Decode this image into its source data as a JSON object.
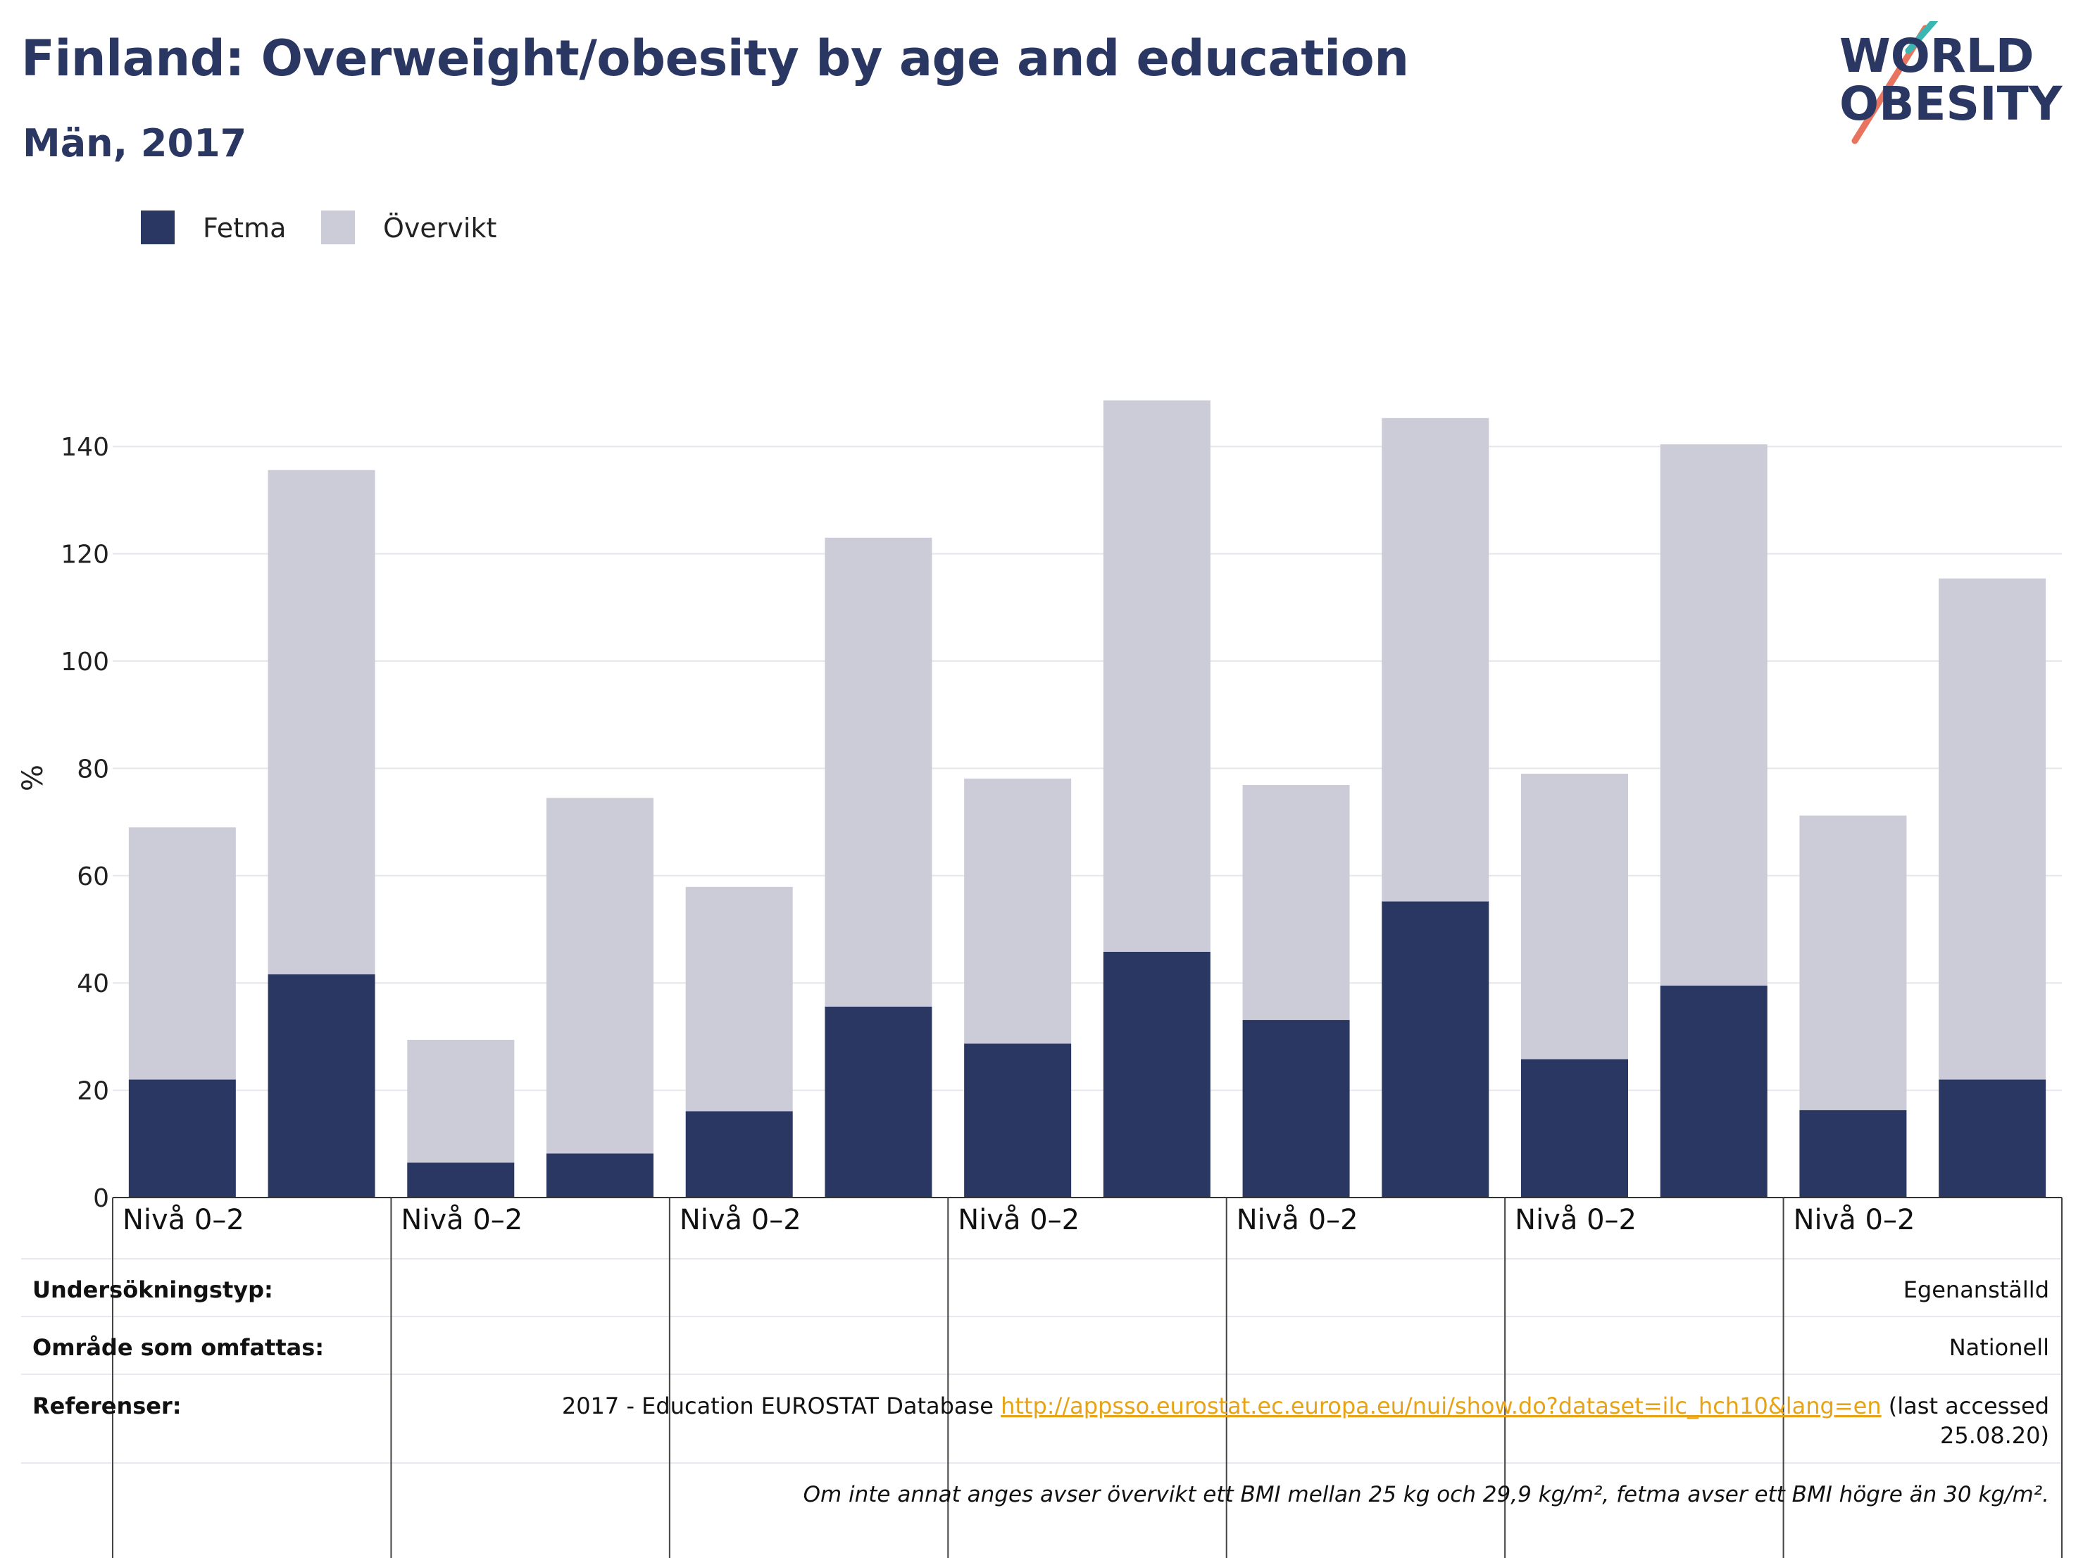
{
  "header": {
    "title": "Finland: Overweight/obesity by age and education",
    "subtitle": "Män, 2017"
  },
  "logo": {
    "line1": "WORLD",
    "line2": "OBESITY"
  },
  "colors": {
    "fetma": "#2b3763",
    "overvikt": "#cbccd8",
    "title": "#2b3763",
    "link": "#e7a316"
  },
  "chart_data": {
    "type": "bar",
    "stacked": true,
    "categories": [
      "Nivå 0–2",
      "",
      "Nivå 0–2",
      "",
      "Nivå 0–2",
      "",
      "Nivå 0–2",
      "",
      "Nivå 0–2",
      "",
      "Nivå 0–2",
      "",
      "Nivå 0–2",
      ""
    ],
    "series": [
      {
        "name": "Fetma",
        "values": [
          22,
          41.6,
          6.5,
          8.2,
          16.1,
          35.6,
          28.7,
          45.8,
          33.1,
          55.2,
          25.8,
          39.5,
          16.3,
          22
        ]
      },
      {
        "name": "Övervikt",
        "values": [
          47,
          94,
          22.9,
          66.3,
          41.8,
          87.4,
          49.4,
          102.8,
          43.8,
          90.1,
          53.2,
          100.9,
          54.9,
          93.4
        ]
      }
    ],
    "ylabel": "%",
    "ylim": [
      0,
      150
    ],
    "yticks": [
      0,
      20,
      40,
      60,
      80,
      100,
      120,
      140
    ],
    "grid": true,
    "legend_position": "top-left"
  },
  "table": {
    "rows": [
      {
        "label": "Undersökningstyp:",
        "value": "Egenanställd"
      },
      {
        "label": "Område som omfattas:",
        "value": "Nationell"
      },
      {
        "label": "Referenser:",
        "ref_text": "2017 - Education EUROSTAT Database ",
        "link": "http://appsso.eurostat.ec.europa.eu/nui/show.do?dataset=ilc_hch10&lang=en",
        "ref_suffix": " (last accessed",
        "ref_line2": "25.08.20)"
      }
    ],
    "note": "Om inte annat anges avser övervikt ett BMI mellan 25 kg och 29,9 kg/m², fetma avser ett BMI högre än 30 kg/m²."
  }
}
